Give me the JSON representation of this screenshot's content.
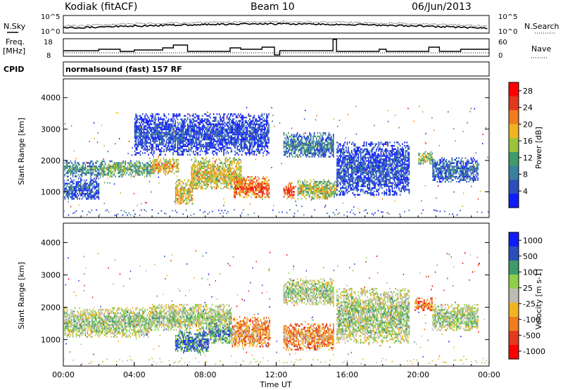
{
  "header": {
    "station": "Kodiak (fitACF)",
    "beam": "Beam 10",
    "date": "06/Jun/2013"
  },
  "top_panels": {
    "nsky_label": "N.Sky",
    "nsky_ticks": [
      "10^5",
      "10^0"
    ],
    "nsearch_label": "N.Search",
    "nsearch_ticks": [
      "10^5",
      "10^0"
    ],
    "freq_label": "Freq.",
    "freq_unit": "[MHz]",
    "freq_ticks": [
      "18",
      "8"
    ],
    "nave_label": "Nave",
    "nave_ticks": [
      "60",
      "0"
    ],
    "cpid_label": "CPID",
    "cpid_text": "normalsound (fast) 157 RF"
  },
  "x_axis": {
    "label": "Time UT",
    "ticks": [
      "00:00",
      "04:00",
      "08:00",
      "12:00",
      "16:00",
      "20:00",
      "00:00"
    ]
  },
  "chart_data": [
    {
      "type": "heatmap",
      "name": "power",
      "ylabel": "Slant Range [km]",
      "yticks": [
        "1000",
        "2000",
        "3000",
        "4000"
      ],
      "ylim": [
        180,
        4600
      ],
      "xlim_hours": [
        0,
        24
      ],
      "colorbar_label": "Power [dB]",
      "colorbar_ticks": [
        "4",
        "8",
        "12",
        "16",
        "20",
        "24",
        "28"
      ],
      "colorbar_range": [
        0,
        30
      ],
      "colors": [
        "#0f1cff",
        "#2b4fb8",
        "#3a7fa0",
        "#3f9a6c",
        "#9ac43c",
        "#f0b423",
        "#f07d1e",
        "#e23a1c",
        "#ff0000"
      ],
      "regions": [
        {
          "t0": 0.0,
          "t1": 2.2,
          "r0": 1500,
          "r1": 2000,
          "level": 0.25
        },
        {
          "t0": 0.0,
          "t1": 2.0,
          "r0": 750,
          "r1": 1450,
          "level": 0.12
        },
        {
          "t0": 2.2,
          "t1": 5.0,
          "r0": 1500,
          "r1": 2000,
          "level": 0.35
        },
        {
          "t0": 5.0,
          "t1": 6.5,
          "r0": 1600,
          "r1": 2100,
          "level": 0.55
        },
        {
          "t0": 6.3,
          "t1": 7.3,
          "r0": 600,
          "r1": 1400,
          "level": 0.5
        },
        {
          "t0": 7.2,
          "t1": 10.0,
          "r0": 1100,
          "r1": 2100,
          "level": 0.5
        },
        {
          "t0": 9.6,
          "t1": 11.6,
          "r0": 800,
          "r1": 1500,
          "level": 0.7
        },
        {
          "t0": 12.4,
          "t1": 13.0,
          "r0": 800,
          "r1": 1300,
          "level": 0.75
        },
        {
          "t0": 13.2,
          "t1": 15.4,
          "r0": 800,
          "r1": 1400,
          "level": 0.45
        },
        {
          "t0": 12.4,
          "t1": 15.2,
          "r0": 2100,
          "r1": 2900,
          "level": 0.2
        },
        {
          "t0": 15.4,
          "t1": 19.5,
          "r0": 900,
          "r1": 2600,
          "level": 0.08
        },
        {
          "t0": 20.0,
          "t1": 20.8,
          "r0": 1900,
          "r1": 2300,
          "level": 0.4
        },
        {
          "t0": 20.8,
          "t1": 23.4,
          "r0": 1300,
          "r1": 2100,
          "level": 0.15
        },
        {
          "t0": 4.0,
          "t1": 11.6,
          "r0": 2200,
          "r1": 3500,
          "level": 0.06
        }
      ]
    },
    {
      "type": "heatmap",
      "name": "velocity",
      "ylabel": "Slant Range [km]",
      "yticks": [
        "1000",
        "2000",
        "3000",
        "4000"
      ],
      "ylim": [
        180,
        4600
      ],
      "xlim_hours": [
        0,
        24
      ],
      "colorbar_label": "Velocity [m s-1]",
      "colorbar_ticks": [
        "1000",
        "500",
        "100",
        "25",
        "-25",
        "-100",
        "-500",
        "-1000"
      ],
      "colorbar_range": [
        -1000,
        1000
      ],
      "colors": [
        "#ff0000",
        "#e23a1c",
        "#f07d1e",
        "#f0b423",
        "#bdbdb5",
        "#8fd04a",
        "#3f9a6c",
        "#2b4fb8",
        "#0f1cff"
      ],
      "regions": [
        {
          "t0": 0.0,
          "t1": 5.0,
          "r0": 1100,
          "r1": 2000,
          "level": 0.5
        },
        {
          "t0": 5.0,
          "t1": 9.5,
          "r0": 1300,
          "r1": 2100,
          "level": 0.5
        },
        {
          "t0": 6.3,
          "t1": 8.2,
          "r0": 600,
          "r1": 1300,
          "level": 0.72
        },
        {
          "t0": 8.2,
          "t1": 9.5,
          "r0": 900,
          "r1": 1500,
          "level": 0.65
        },
        {
          "t0": 9.5,
          "t1": 11.6,
          "r0": 800,
          "r1": 1700,
          "level": 0.25
        },
        {
          "t0": 12.4,
          "t1": 15.2,
          "r0": 700,
          "r1": 1500,
          "level": 0.25
        },
        {
          "t0": 12.4,
          "t1": 15.2,
          "r0": 2100,
          "r1": 2900,
          "level": 0.5
        },
        {
          "t0": 15.4,
          "t1": 19.5,
          "r0": 900,
          "r1": 2600,
          "level": 0.5
        },
        {
          "t0": 19.8,
          "t1": 20.8,
          "r0": 1900,
          "r1": 2300,
          "level": 0.2
        },
        {
          "t0": 20.8,
          "t1": 23.4,
          "r0": 1300,
          "r1": 2100,
          "level": 0.5
        }
      ]
    }
  ]
}
